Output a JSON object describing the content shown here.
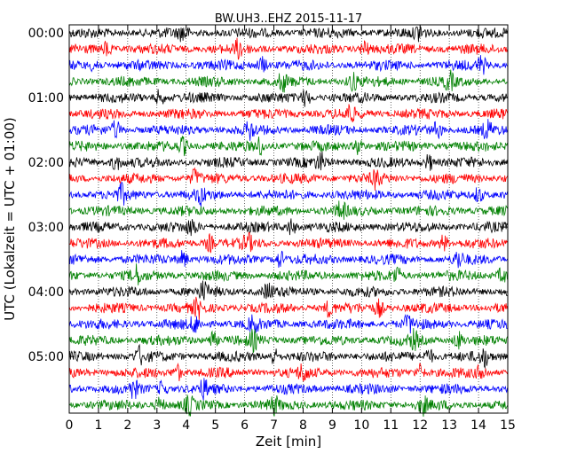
{
  "chart_data": {
    "type": "line",
    "title": "BW.UH3..EHZ 2015-11-17",
    "xlabel": "Zeit  [min]",
    "ylabel": "UTC (Lokalzeit = UTC + 01:00)",
    "xlim": [
      0,
      15
    ],
    "x_ticks": [
      "0",
      "1",
      "2",
      "3",
      "4",
      "5",
      "6",
      "7",
      "8",
      "9",
      "10",
      "11",
      "12",
      "13",
      "14",
      "15"
    ],
    "y_tick_labels": [
      "00:00",
      "01:00",
      "02:00",
      "03:00",
      "04:00",
      "05:00"
    ],
    "minutes_per_trace": 15,
    "trace_count": 24,
    "color_cycle": [
      "#000000",
      "#ff0000",
      "#0000ff",
      "#008000"
    ],
    "grid": true,
    "traces": [
      {
        "start": "00:00",
        "color": "#000000",
        "events_min": [
          3.9,
          12.0
        ]
      },
      {
        "start": "00:15",
        "color": "#ff0000",
        "events_min": [
          1.3,
          5.8,
          10.1
        ]
      },
      {
        "start": "00:30",
        "color": "#0000ff",
        "events_min": [
          0.9,
          6.6,
          14.1
        ]
      },
      {
        "start": "00:45",
        "color": "#008000",
        "events_min": [
          7.3,
          9.7,
          13.0
        ]
      },
      {
        "start": "01:00",
        "color": "#000000",
        "events_min": [
          3.1,
          8.1
        ]
      },
      {
        "start": "01:15",
        "color": "#ff0000",
        "events_min": [
          9.6
        ]
      },
      {
        "start": "01:30",
        "color": "#0000ff",
        "events_min": [
          1.6,
          6.2,
          12.6,
          14.3
        ]
      },
      {
        "start": "01:45",
        "color": "#008000",
        "events_min": [
          3.9,
          6.5,
          9.9
        ]
      },
      {
        "start": "02:00",
        "color": "#000000",
        "events_min": [
          1.6,
          8.6,
          12.3
        ]
      },
      {
        "start": "02:15",
        "color": "#ff0000",
        "events_min": [
          4.3,
          10.5
        ]
      },
      {
        "start": "02:30",
        "color": "#0000ff",
        "events_min": [
          1.8,
          4.5,
          14.0
        ]
      },
      {
        "start": "02:45",
        "color": "#008000",
        "events_min": [
          9.3
        ]
      },
      {
        "start": "03:00",
        "color": "#000000",
        "events_min": [
          4.2,
          7.6
        ]
      },
      {
        "start": "03:15",
        "color": "#ff0000",
        "events_min": [
          4.8,
          6.1,
          12.8
        ]
      },
      {
        "start": "03:30",
        "color": "#0000ff",
        "events_min": [
          3.9,
          7.2,
          13.3
        ]
      },
      {
        "start": "03:45",
        "color": "#008000",
        "events_min": [
          2.3,
          11.2,
          14.8
        ]
      },
      {
        "start": "04:00",
        "color": "#000000",
        "events_min": [
          4.6,
          6.8
        ]
      },
      {
        "start": "04:15",
        "color": "#ff0000",
        "events_min": [
          4.4,
          8.9,
          10.6
        ]
      },
      {
        "start": "04:30",
        "color": "#0000ff",
        "events_min": [
          4.3,
          6.3,
          11.6
        ]
      },
      {
        "start": "04:45",
        "color": "#008000",
        "events_min": [
          4.9,
          6.3,
          11.8,
          13.3
        ]
      },
      {
        "start": "05:00",
        "color": "#000000",
        "events_min": [
          2.4,
          7.0,
          12.3,
          14.2
        ]
      },
      {
        "start": "05:15",
        "color": "#ff0000",
        "events_min": [
          3.7,
          8.0,
          12.0,
          14.1
        ]
      },
      {
        "start": "05:30",
        "color": "#0000ff",
        "events_min": [
          2.2,
          3.2,
          4.6
        ]
      },
      {
        "start": "05:45",
        "color": "#008000",
        "events_min": [
          3.1,
          4.1,
          7.0,
          12.1
        ]
      }
    ]
  }
}
